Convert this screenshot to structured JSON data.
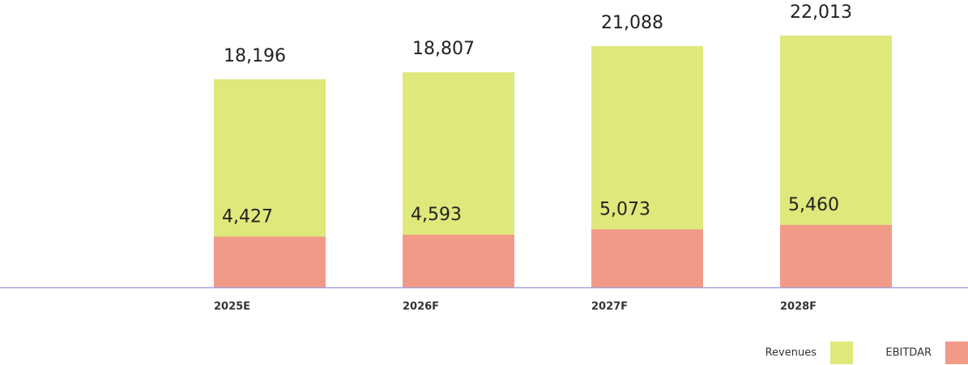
{
  "chart_data": {
    "type": "bar",
    "barmode": "overlay",
    "categories": [
      "2025E",
      "2026F",
      "2027F",
      "2028F"
    ],
    "series": [
      {
        "name": "Revenues",
        "color": "#dfe87a",
        "values": [
          18196,
          18807,
          21088,
          22013
        ],
        "value_labels": [
          "18,196",
          "18,807",
          "21,088",
          "22,013"
        ]
      },
      {
        "name": "EBITDAR",
        "color": "#f29a88",
        "values": [
          4427,
          4593,
          5073,
          5460
        ],
        "value_labels": [
          "4,427",
          "4,593",
          "5,073",
          "5,460"
        ]
      }
    ],
    "ylim": [
      0,
      23000
    ],
    "axis_color": "#a99fd8",
    "legend": "bottom-right"
  }
}
